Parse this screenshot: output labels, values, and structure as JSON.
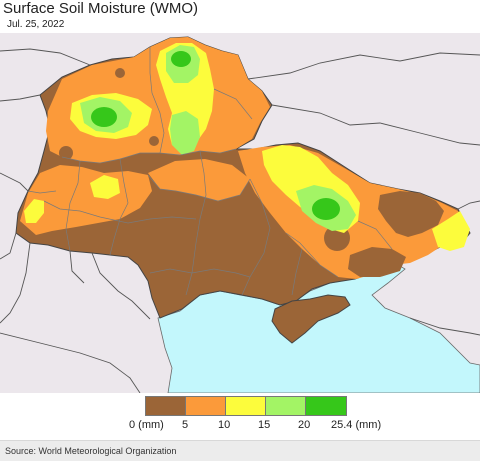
{
  "title": "Surface Soil Moisture (WMO)",
  "date": "Jul. 25, 2022",
  "legend": {
    "colors": [
      "#9b6537",
      "#fb9a3a",
      "#fcfc3c",
      "#a3f465",
      "#36c71a"
    ],
    "labels": [
      "0 (mm)",
      "5",
      "10",
      "15",
      "20",
      "25.4 (mm)"
    ]
  },
  "source": "Source: World Meteorological Organization",
  "map_colors": {
    "background": "#ece7ec",
    "sea": "#c3f7fc",
    "border": "#555555",
    "province_line": "#7a7a7a"
  }
}
